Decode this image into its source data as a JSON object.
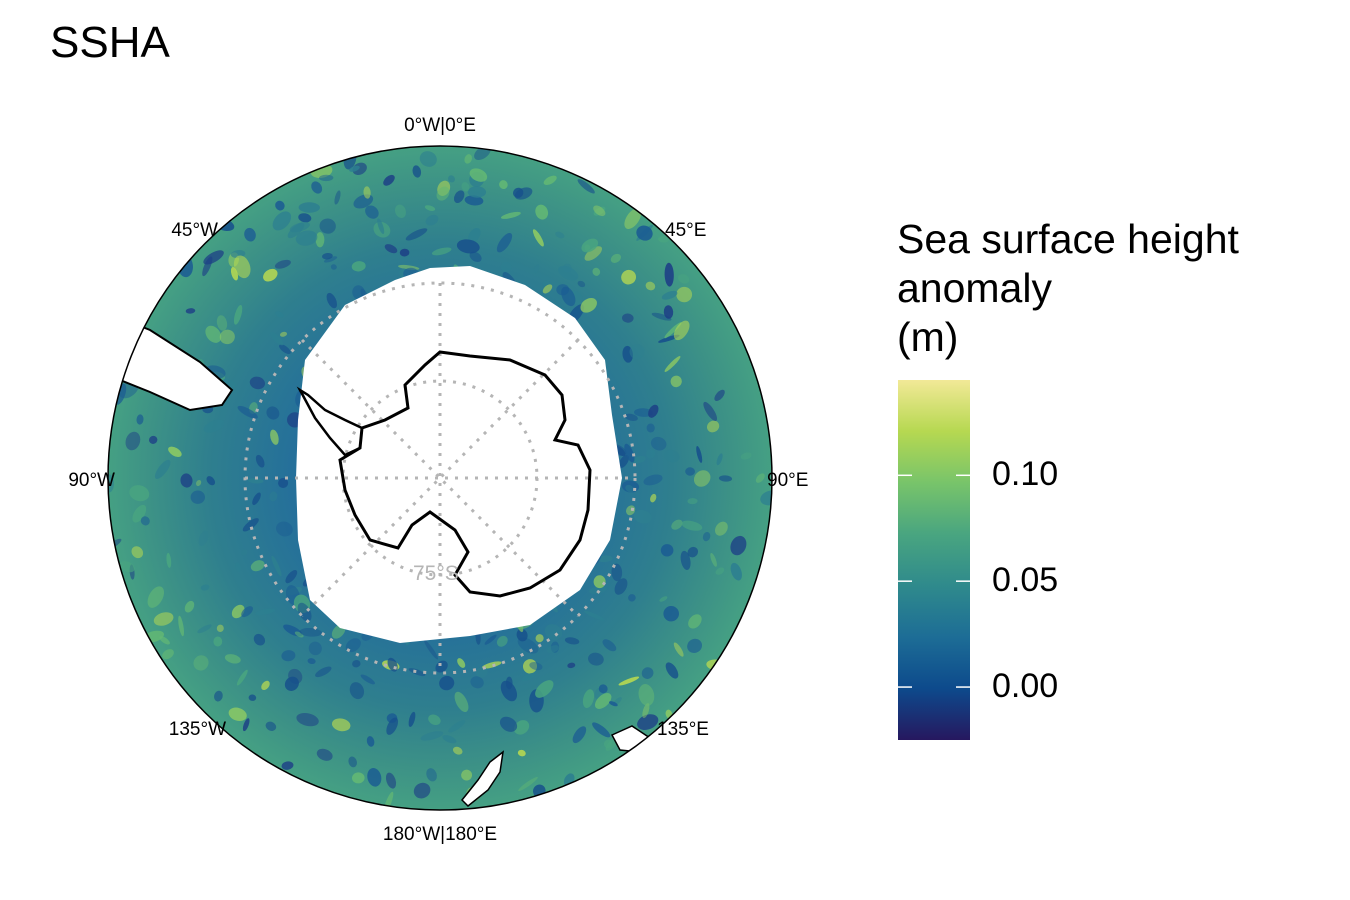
{
  "title": "SSHA",
  "map": {
    "projection": "south-polar-stereographic",
    "longitude_labels": [
      {
        "lon": 0,
        "text": "0°W|0°E"
      },
      {
        "lon": 45,
        "text": "45°E"
      },
      {
        "lon": 90,
        "text": "90°E"
      },
      {
        "lon": 135,
        "text": "135°E"
      },
      {
        "lon": 180,
        "text": "180°W|180°E"
      },
      {
        "lon": -135,
        "text": "135°W"
      },
      {
        "lon": -90,
        "text": "90°W"
      },
      {
        "lon": -45,
        "text": "45°W"
      }
    ],
    "latitude_labels": [
      {
        "lat": -75,
        "text": "75°S"
      }
    ],
    "land_color": "#ffffff",
    "coastline_color": "#000000",
    "graticule_color": "#b5b5b5"
  },
  "legend": {
    "title_lines": [
      "Sea surface height",
      "anomaly",
      "(m)"
    ],
    "range": [
      -0.025,
      0.145
    ],
    "ticks": [
      {
        "value": 0.1,
        "label": "0.10"
      },
      {
        "value": 0.05,
        "label": "0.05"
      },
      {
        "value": 0.0,
        "label": "0.00"
      }
    ],
    "colors": [
      "#26185f",
      "#0d4a8c",
      "#1d6d96",
      "#2f8a8c",
      "#49a580",
      "#78c46a",
      "#b6d851",
      "#f2e997"
    ]
  }
}
